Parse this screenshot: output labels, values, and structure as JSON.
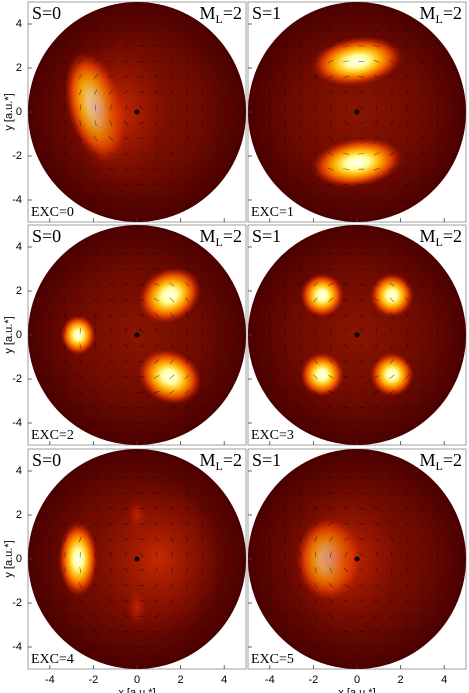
{
  "chart_data": [
    {
      "type": "density",
      "spin": "S=0",
      "m_symbol": "M",
      "m_subscript": "L",
      "m_value": "=2",
      "excitation": "EXC=0",
      "ylabel": "y [a.u.*]",
      "xlim": [
        -5,
        5
      ],
      "ylim": [
        -5,
        5
      ],
      "xticks": [
        -4,
        -2,
        0,
        2,
        4
      ],
      "yticks": [
        -4,
        -2,
        0,
        2,
        4
      ]
    },
    {
      "type": "density",
      "spin": "S=1",
      "m_symbol": "M",
      "m_subscript": "L",
      "m_value": "=2",
      "excitation": "EXC=1",
      "xlim": [
        -5,
        5
      ],
      "ylim": [
        -5,
        5
      ],
      "xticks": [
        -4,
        -2,
        0,
        2,
        4
      ],
      "yticks": [
        -4,
        -2,
        0,
        2,
        4
      ]
    },
    {
      "type": "density",
      "spin": "S=0",
      "m_symbol": "M",
      "m_subscript": "L",
      "m_value": "=2",
      "excitation": "EXC=2",
      "ylabel": "y [a.u.*]",
      "xlim": [
        -5,
        5
      ],
      "ylim": [
        -5,
        5
      ],
      "xticks": [
        -4,
        -2,
        0,
        2,
        4
      ],
      "yticks": [
        -4,
        -2,
        0,
        2,
        4
      ]
    },
    {
      "type": "density",
      "spin": "S=1",
      "m_symbol": "M",
      "m_subscript": "L",
      "m_value": "=2",
      "excitation": "EXC=3",
      "xlim": [
        -5,
        5
      ],
      "ylim": [
        -5,
        5
      ],
      "xticks": [
        -4,
        -2,
        0,
        2,
        4
      ],
      "yticks": [
        -4,
        -2,
        0,
        2,
        4
      ]
    },
    {
      "type": "density",
      "spin": "S=0",
      "m_symbol": "M",
      "m_subscript": "L",
      "m_value": "=2",
      "excitation": "EXC=4",
      "ylabel": "y [a.u.*]",
      "xlabel": "x [a.u.*]",
      "xlim": [
        -5,
        5
      ],
      "ylim": [
        -5,
        5
      ],
      "xticks": [
        -4,
        -2,
        0,
        2,
        4
      ],
      "yticks": [
        -4,
        -2,
        0,
        2,
        4
      ]
    },
    {
      "type": "density",
      "spin": "S=1",
      "m_symbol": "M",
      "m_subscript": "L",
      "m_value": "=2",
      "excitation": "EXC=5",
      "xlabel": "x [a.u.*]",
      "xlim": [
        -5,
        5
      ],
      "ylim": [
        -5,
        5
      ],
      "xticks": [
        -4,
        -2,
        0,
        2,
        4
      ],
      "yticks": [
        -4,
        -2,
        0,
        2,
        4
      ]
    }
  ]
}
